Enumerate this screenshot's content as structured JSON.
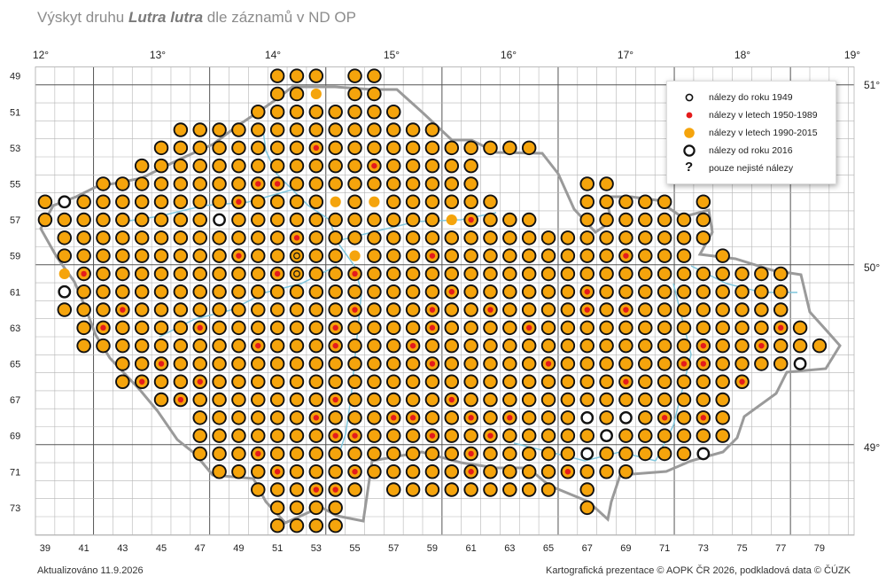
{
  "title": {
    "prefix": "Výskyt druhu ",
    "species": "Lutra lutra",
    "suffix": " dle záznamů v ND OP"
  },
  "footer": {
    "updated": "Aktualizováno 11.9.2026",
    "credits": "Kartografická prezentace © AOPK ČR 2026, podkladová data © ČÚZK"
  },
  "legend": [
    {
      "symbol": "small-black-ring",
      "label": "nálezy do roku 1949"
    },
    {
      "symbol": "red-dot",
      "label": "nálezy v letech 1950-1989"
    },
    {
      "symbol": "orange-dot",
      "label": "nálezy v letech 1990-2015"
    },
    {
      "symbol": "large-black-ring",
      "label": "nálezy od roku 2016"
    },
    {
      "symbol": "question-mark",
      "label": "pouze nejisté nálezy",
      "glyph": "?"
    }
  ],
  "colors": {
    "orange": "#f5a40c",
    "red": "#e41b1b",
    "ring": "#111111",
    "grid": "#b5b5b5",
    "grid_major": "#555555",
    "river": "#7fc6dc",
    "border": "#9a9a9a"
  },
  "axes": {
    "longitude": [
      "12°",
      "13°",
      "14°",
      "15°",
      "16°",
      "17°",
      "18°",
      "19°"
    ],
    "latitude": [
      "51°",
      "50°",
      "49°"
    ],
    "grid_columns": [
      "39",
      "41",
      "43",
      "45",
      "47",
      "49",
      "51",
      "53",
      "55",
      "57",
      "59",
      "61",
      "63",
      "65",
      "67",
      "69",
      "71",
      "73",
      "75",
      "77",
      "79"
    ],
    "grid_rows": [
      "49",
      "51",
      "53",
      "55",
      "57",
      "59",
      "61",
      "63",
      "65",
      "67",
      "69",
      "71",
      "73"
    ]
  },
  "row_extents": {
    "49": [
      [
        51,
        53
      ],
      [
        55,
        56
      ]
    ],
    "50": [
      [
        51,
        53
      ],
      [
        55,
        56
      ]
    ],
    "51": [
      [
        50,
        57
      ]
    ],
    "52": [
      [
        46,
        59
      ]
    ],
    "53": [
      [
        45,
        64
      ]
    ],
    "54": [
      [
        44,
        61
      ]
    ],
    "55": [
      [
        42,
        61
      ],
      [
        67,
        68
      ]
    ],
    "56": [
      [
        39,
        62
      ],
      [
        67,
        71
      ],
      [
        73,
        73
      ]
    ],
    "57": [
      [
        39,
        64
      ],
      [
        67,
        73
      ]
    ],
    "58": [
      [
        40,
        73
      ]
    ],
    "59": [
      [
        40,
        72
      ],
      [
        74,
        74
      ]
    ],
    "60": [
      [
        40,
        77
      ]
    ],
    "61": [
      [
        40,
        77
      ]
    ],
    "62": [
      [
        40,
        77
      ]
    ],
    "63": [
      [
        41,
        78
      ]
    ],
    "64": [
      [
        41,
        79
      ]
    ],
    "65": [
      [
        43,
        78
      ]
    ],
    "66": [
      [
        43,
        75
      ]
    ],
    "67": [
      [
        45,
        74
      ]
    ],
    "68": [
      [
        47,
        74
      ]
    ],
    "69": [
      [
        47,
        74
      ]
    ],
    "70": [
      [
        47,
        73
      ]
    ],
    "71": [
      [
        48,
        69
      ]
    ],
    "72": [
      [
        50,
        55
      ],
      [
        57,
        65
      ],
      [
        67,
        67
      ]
    ],
    "73": [
      [
        51,
        54
      ],
      [
        67,
        67
      ]
    ],
    "74": [
      [
        51,
        54
      ]
    ]
  },
  "special_cells": {
    "orange_only": [
      "50-49",
      "50-53",
      "56-56",
      "56-54",
      "57-60",
      "59-55",
      "60-40",
      "67-75"
    ],
    "small_ring_only": [
      "59-52",
      "60-52"
    ],
    "large_ring_only": [
      "56-40",
      "57-48",
      "61-40",
      "65-78",
      "68-67",
      "68-69",
      "69-68",
      "70-67",
      "70-73",
      "71-70",
      "71-71"
    ],
    "red_center": [
      "53-53",
      "54-56",
      "55-50",
      "55-51",
      "56-49",
      "57-61",
      "58-52",
      "59-49",
      "59-59",
      "59-69",
      "60-41",
      "60-51",
      "60-55",
      "61-60",
      "61-67",
      "62-43",
      "62-55",
      "62-59",
      "62-62",
      "62-67",
      "62-69",
      "63-42",
      "63-47",
      "63-54",
      "63-59",
      "63-64",
      "63-77",
      "64-50",
      "64-54",
      "64-58",
      "64-73",
      "64-76",
      "65-45",
      "65-59",
      "65-65",
      "65-72",
      "65-73",
      "66-44",
      "66-47",
      "66-69",
      "66-75",
      "67-46",
      "67-54",
      "67-60",
      "68-45",
      "68-53",
      "68-57",
      "68-58",
      "68-61",
      "68-63",
      "68-71",
      "68-73",
      "69-54",
      "69-55",
      "69-59",
      "69-62",
      "70-50",
      "70-61",
      "71-51",
      "71-55",
      "71-61",
      "71-66",
      "72-53",
      "72-54"
    ]
  }
}
